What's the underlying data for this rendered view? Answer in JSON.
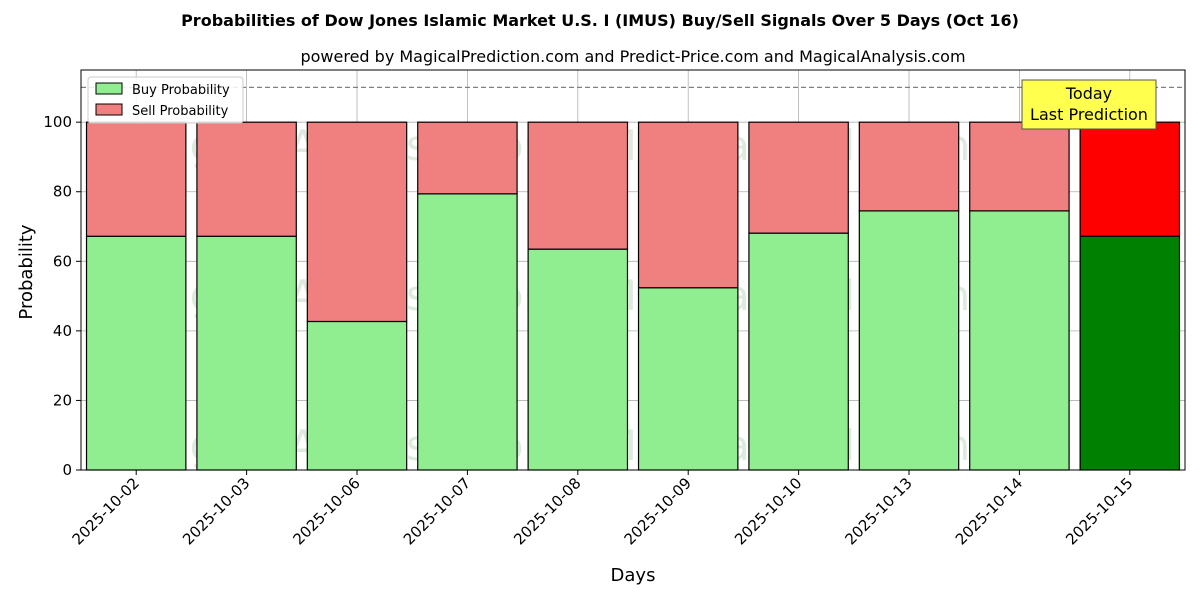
{
  "chart_data": {
    "type": "bar",
    "stacked": true,
    "title": "Probabilities of Dow Jones Islamic Market U.S. I (IMUS) Buy/Sell Signals Over 5 Days (Oct 16)",
    "subtitle": "powered by MagicalPrediction.com and Predict-Price.com and MagicalAnalysis.com",
    "xlabel": "Days",
    "ylabel": "Probability",
    "ylim": [
      0,
      115
    ],
    "yticks": [
      0,
      20,
      40,
      60,
      80,
      100
    ],
    "grid": true,
    "legend_position": "top-left",
    "reference_line": 110,
    "categories": [
      "2025-10-02",
      "2025-10-03",
      "2025-10-06",
      "2025-10-07",
      "2025-10-08",
      "2025-10-09",
      "2025-10-10",
      "2025-10-13",
      "2025-10-14",
      "2025-10-15"
    ],
    "series": [
      {
        "name": "Buy Probability",
        "color": "#90ee90",
        "highlight_color": "#008000",
        "values": [
          67.2,
          67.2,
          42.7,
          79.4,
          63.5,
          52.4,
          68.1,
          74.5,
          74.5,
          67.2
        ]
      },
      {
        "name": "Sell Probability",
        "color": "#f08080",
        "highlight_color": "#ff0000",
        "values": [
          32.8,
          32.8,
          57.3,
          20.6,
          36.5,
          47.6,
          31.9,
          25.5,
          25.5,
          32.8
        ]
      }
    ],
    "highlight_index": 9,
    "annotation": {
      "line1": "Today",
      "line2": "Last Prediction",
      "background": "#ffff4d"
    },
    "watermarks": [
      "MagicalAnalysis.com",
      "MagicalPrediction.com"
    ]
  }
}
